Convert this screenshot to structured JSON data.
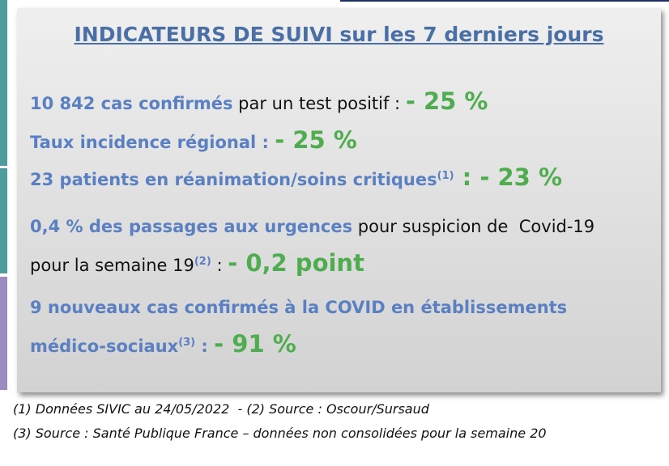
{
  "title": "INDICATEURS DE SUIVI sur les 7 derniers jours",
  "indicators": [
    [
      "10 842 cas confirmés",
      " par un test positif : ",
      "- 25 %"
    ],
    [
      "Taux incidence régional : ",
      "- 25 %"
    ],
    [
      "23 patients en réanimation/soins critiques",
      "(1)",
      " : ",
      "- 23 %"
    ],
    [
      "0,4 % des passages aux urgences",
      " pour suspicion de  Covid-19",
      "pour la semaine 19",
      "(2)",
      " : ",
      "- 0,2 point"
    ],
    [
      "9 nouveaux cas confirmés à la COVID en établissements",
      "médico-sociaux",
      "(3)",
      " : ",
      "- 91 %"
    ]
  ],
  "footnotes": [
    "(1) Données SIVIC au 24/05/2022  - (2) Source : Oscour/Sursaud",
    "(3) Source : Santé Publique France – données non consolidées pour la semaine 20"
  ]
}
